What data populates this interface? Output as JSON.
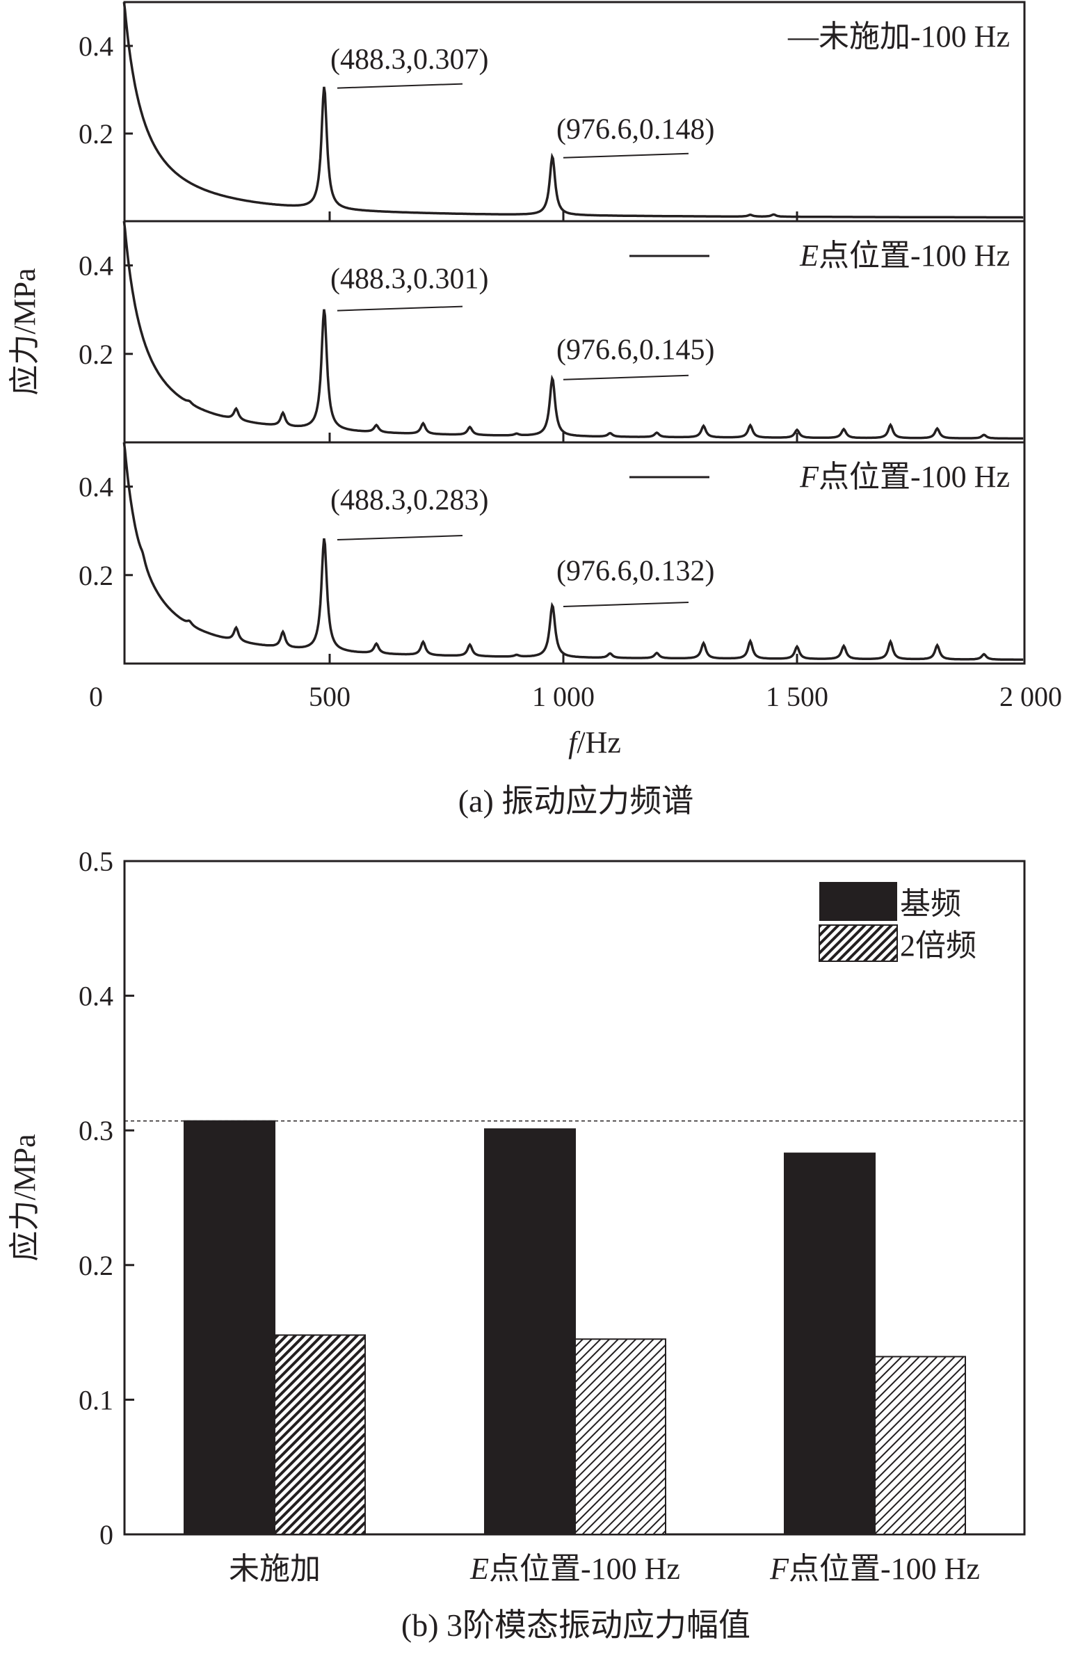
{
  "colors": {
    "ink": "#231f20",
    "background": "#ffffff"
  },
  "chart_data": [
    {
      "type": "line",
      "title": "(a) 振动应力频谱",
      "xlabel_italic": "f",
      "xlabel_rest": "/Hz",
      "ylabel": "应力/MPa",
      "xlim": [
        60,
        1985
      ],
      "ylim": [
        0,
        0.5
      ],
      "xticks": [
        0,
        500,
        1000,
        1500,
        2000
      ],
      "xtick_labels": [
        "0",
        "500",
        "1 000",
        "1 500",
        "2 000"
      ],
      "yticks": [
        0.2,
        0.4
      ],
      "ytick_labels": [
        "0.2",
        "0.4"
      ],
      "series": [
        {
          "name": "未施加-100 Hz",
          "legend_italic": "",
          "legend_rest": "—未施加-100 Hz",
          "peaks": [
            [
              488.3,
              0.307
            ],
            [
              976.6,
              0.148
            ],
            [
              1400,
              0.004
            ],
            [
              1450,
              0.005
            ]
          ],
          "annotations": [
            "(488.3,0.307)",
            "(976.6,0.148)"
          ]
        },
        {
          "name": "E点位置-100 Hz",
          "legend_italic": "E",
          "legend_rest": "点位置-100 Hz",
          "peaks": [
            [
              488.3,
              0.301
            ],
            [
              976.6,
              0.145
            ],
            [
              200,
              0.005
            ],
            [
              300,
              0.025
            ],
            [
              400,
              0.03
            ],
            [
              600,
              0.016
            ],
            [
              700,
              0.024
            ],
            [
              800,
              0.018
            ],
            [
              900,
              0.004
            ],
            [
              1100,
              0.008
            ],
            [
              1200,
              0.01
            ],
            [
              1300,
              0.026
            ],
            [
              1400,
              0.028
            ],
            [
              1500,
              0.018
            ],
            [
              1600,
              0.02
            ],
            [
              1700,
              0.03
            ],
            [
              1800,
              0.022
            ],
            [
              1900,
              0.008
            ]
          ],
          "annotations": [
            "(488.3,0.301)",
            "(976.6,0.145)"
          ]
        },
        {
          "name": "F点位置-100 Hz",
          "legend_italic": "F",
          "legend_rest": "点位置-100 Hz",
          "peaks": [
            [
              488.3,
              0.283
            ],
            [
              976.6,
              0.132
            ],
            [
              100,
              0.012
            ],
            [
              200,
              0.008
            ],
            [
              300,
              0.03
            ],
            [
              400,
              0.035
            ],
            [
              600,
              0.022
            ],
            [
              700,
              0.03
            ],
            [
              800,
              0.026
            ],
            [
              900,
              0.004
            ],
            [
              1100,
              0.01
            ],
            [
              1200,
              0.012
            ],
            [
              1300,
              0.035
            ],
            [
              1400,
              0.04
            ],
            [
              1500,
              0.028
            ],
            [
              1600,
              0.03
            ],
            [
              1700,
              0.04
            ],
            [
              1800,
              0.032
            ],
            [
              1900,
              0.012
            ]
          ],
          "annotations": [
            "(488.3,0.283)",
            "(976.6,0.132)"
          ]
        }
      ]
    },
    {
      "type": "bar",
      "title": "(b) 3阶模态振动应力幅值",
      "ylabel": "应力/MPa",
      "ylim": [
        0,
        0.5
      ],
      "yticks": [
        0,
        0.1,
        0.2,
        0.3,
        0.4,
        0.5
      ],
      "ytick_labels": [
        "0",
        "0.1",
        "0.2",
        "0.3",
        "0.4",
        "0.5"
      ],
      "categories": [
        {
          "italic": "",
          "rest": "未施加"
        },
        {
          "italic": "E",
          "rest": "点位置-100 Hz"
        },
        {
          "italic": "F",
          "rest": "点位置-100 Hz"
        }
      ],
      "series": [
        {
          "name": "基频",
          "values": [
            0.307,
            0.301,
            0.283
          ]
        },
        {
          "name": "2倍频",
          "values": [
            0.148,
            0.145,
            0.132
          ]
        }
      ],
      "reference_line": 0.307,
      "legend_placement": "top-right"
    }
  ]
}
